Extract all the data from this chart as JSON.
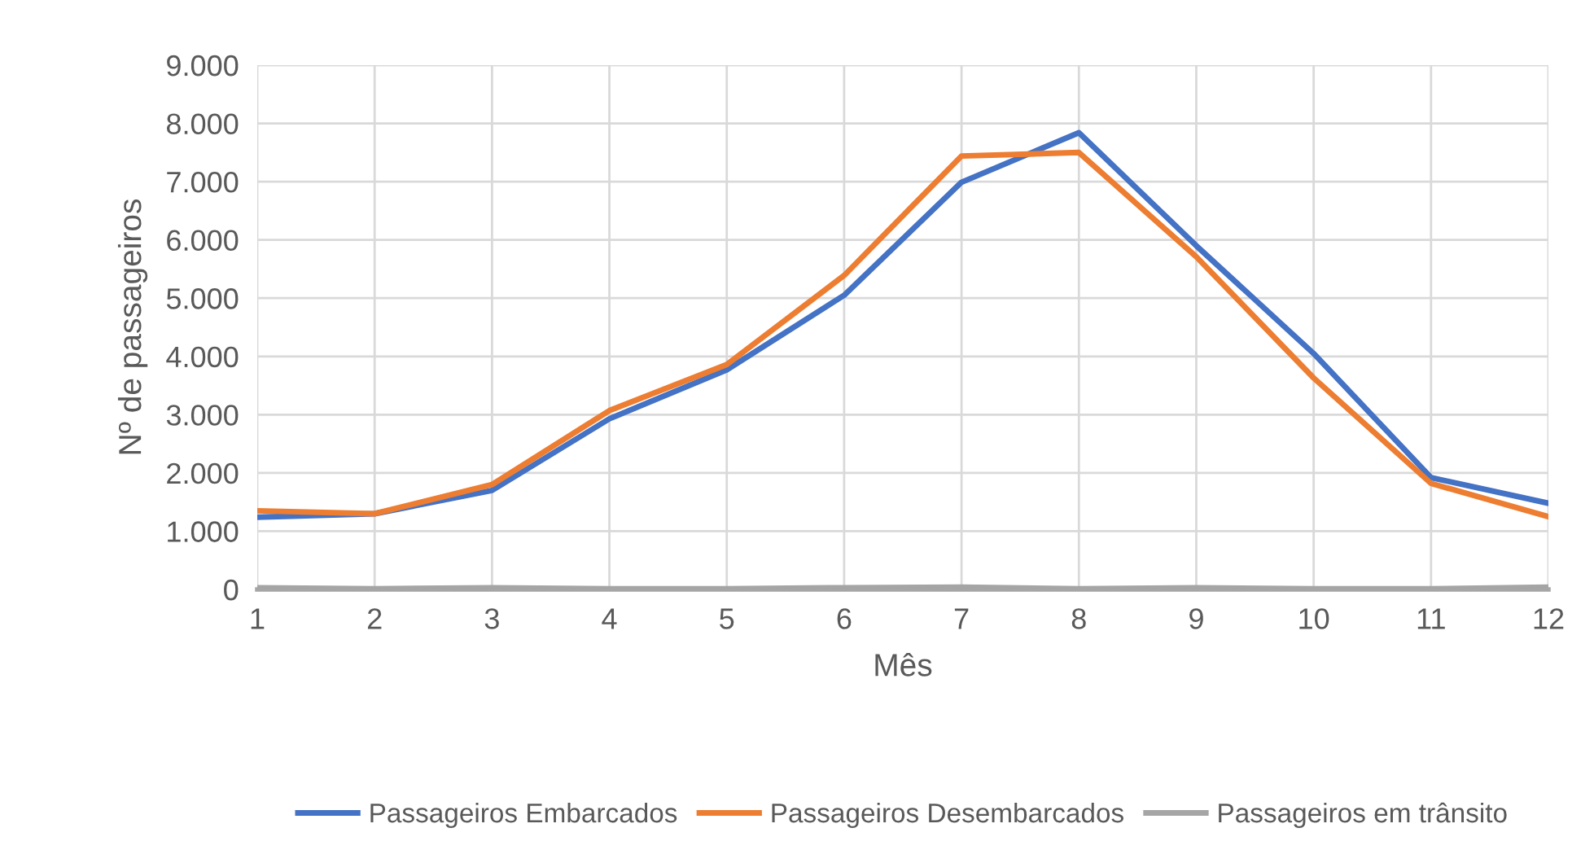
{
  "chart_data": {
    "type": "line",
    "xlabel": "Mês",
    "ylabel": "Nº de passageiros",
    "x": [
      1,
      2,
      3,
      4,
      5,
      6,
      7,
      8,
      9,
      10,
      11,
      12
    ],
    "series": [
      {
        "name": "Passageiros Embarcados",
        "color": "#4472c4",
        "values": [
          1240,
          1300,
          1700,
          2930,
          3770,
          5050,
          6990,
          7840,
          5900,
          4050,
          1920,
          1480
        ]
      },
      {
        "name": "Passageiros Desembarcados",
        "color": "#ed7d31",
        "values": [
          1350,
          1300,
          1800,
          3070,
          3860,
          5390,
          7440,
          7500,
          5710,
          3630,
          1820,
          1250
        ]
      },
      {
        "name": "Passageiros em trânsito",
        "color": "#a5a5a5",
        "values": [
          30,
          10,
          30,
          10,
          10,
          30,
          40,
          10,
          30,
          10,
          10,
          40
        ]
      }
    ],
    "xlim": [
      1,
      12
    ],
    "xticks": [
      1,
      2,
      3,
      4,
      5,
      6,
      7,
      8,
      9,
      10,
      11,
      12
    ],
    "ylim": [
      0,
      9000
    ],
    "yticks": [
      0,
      {
        "value": 1000,
        "label": "1.000"
      },
      {
        "value": 2000,
        "label": "2.000"
      },
      {
        "value": 3000,
        "label": "3.000"
      },
      {
        "value": 4000,
        "label": "4.000"
      },
      {
        "value": 5000,
        "label": "5.000"
      },
      {
        "value": 6000,
        "label": "6.000"
      },
      {
        "value": 7000,
        "label": "7.000"
      },
      {
        "value": 8000,
        "label": "8.000"
      },
      {
        "value": 9000,
        "label": "9.000"
      }
    ],
    "grid": true,
    "legend": "bottom",
    "marker": "none",
    "line_style": "solid"
  }
}
